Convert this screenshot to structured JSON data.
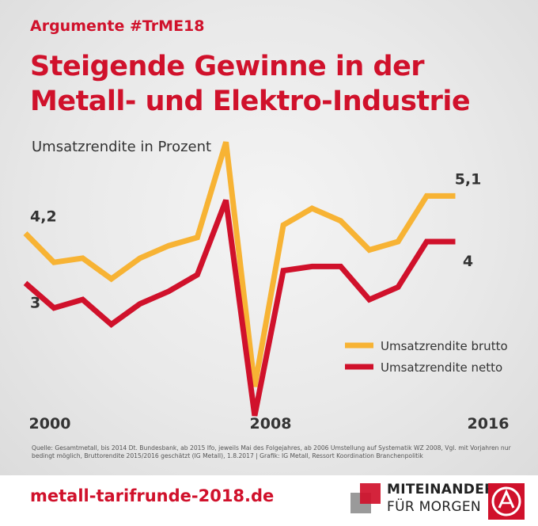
{
  "header": {
    "tag": "Argumente #TrME18",
    "title": "Steigende Gewinne in der Metall- und Elektro-Industrie",
    "subtitle": "Umsatzrendite in Prozent"
  },
  "chart_data": {
    "type": "line",
    "title": "Steigende Gewinne in der Metall- und Elektro-Industrie",
    "ylabel": "Umsatzrendite in Prozent",
    "x": [
      2000,
      2001,
      2002,
      2003,
      2004,
      2005,
      2006,
      2007,
      2008,
      2009,
      2010,
      2011,
      2012,
      2013,
      2014,
      2015,
      2016,
      2017
    ],
    "x_tick_labels": [
      "2000",
      "2008",
      "2016"
    ],
    "ylim": [
      -0.3,
      7.0
    ],
    "series": [
      {
        "name": "Umsatzrendite brutto",
        "color": "#f7b334",
        "values": [
          4.2,
          3.5,
          3.6,
          3.1,
          3.6,
          3.9,
          4.1,
          6.4,
          0.5,
          4.4,
          4.8,
          4.5,
          3.8,
          4.0,
          5.1,
          5.1,
          null,
          null
        ]
      },
      {
        "name": "Umsatzrendite netto",
        "color": "#d0112b",
        "values": [
          3.0,
          2.4,
          2.6,
          2.0,
          2.5,
          2.8,
          3.2,
          5.0,
          -0.2,
          3.3,
          3.4,
          3.4,
          2.6,
          2.9,
          4.0,
          4.0,
          null,
          null
        ]
      }
    ],
    "annotations": [
      {
        "text": "4,2",
        "series": 0,
        "point": 0
      },
      {
        "text": "3",
        "series": 1,
        "point": 0
      },
      {
        "text": "5,1",
        "series": 0,
        "point": 15
      },
      {
        "text": "4",
        "series": 1,
        "point": 15
      }
    ],
    "legend": "right-middle",
    "grid": false
  },
  "source": "Quelle: Gesamtmetall, bis 2014 Dt. Bundesbank, ab 2015 Ifo, jeweils Mai des Folgejahres, ab 2006 Umstellung auf Systematik WZ 2008, Vgl. mit Vorjahren nur bedingt möglich, Bruttorendite 2015/2016 geschätzt (IG Metall), 1.8.2017 | Grafik: IG Metall, Ressort Koordination Branchenpolitik",
  "footer": {
    "url": "metall-tarifrunde-2018.de",
    "motto_line1": "MITEINANDER",
    "motto_line2": "FÜR MORGEN"
  }
}
